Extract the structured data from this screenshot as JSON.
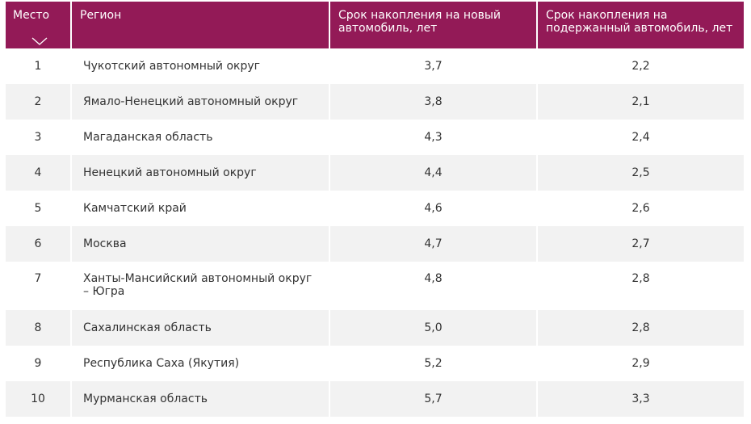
{
  "table": {
    "headers": {
      "place": "Место",
      "region": "Регион",
      "new_car": "Срок накопления на новый автомобиль, лет",
      "used_car": "Срок накопления на подержанный автомобиль, лет"
    },
    "sort_icon": "chevron-down-icon",
    "header_color": "#931a57",
    "rows": [
      {
        "place": "1",
        "region": "Чукотский автономный округ",
        "new_car": "3,7",
        "used_car": "2,2"
      },
      {
        "place": "2",
        "region": "Ямало-Ненецкий автономный округ",
        "new_car": "3,8",
        "used_car": "2,1"
      },
      {
        "place": "3",
        "region": "Магаданская область",
        "new_car": "4,3",
        "used_car": "2,4"
      },
      {
        "place": "4",
        "region": "Ненецкий автономный округ",
        "new_car": "4,4",
        "used_car": "2,5"
      },
      {
        "place": "5",
        "region": "Камчатский край",
        "new_car": "4,6",
        "used_car": "2,6"
      },
      {
        "place": "6",
        "region": "Москва",
        "new_car": "4,7",
        "used_car": "2,7"
      },
      {
        "place": "7",
        "region": "Ханты-Мансийский автономный округ – Югра",
        "new_car": "4,8",
        "used_car": "2,8"
      },
      {
        "place": "8",
        "region": "Сахалинская область",
        "new_car": "5,0",
        "used_car": "2,8"
      },
      {
        "place": "9",
        "region": "Республика Саха (Якутия)",
        "new_car": "5,2",
        "used_car": "2,9"
      },
      {
        "place": "10",
        "region": "Мурманская область",
        "new_car": "5,7",
        "used_car": "3,3"
      }
    ]
  }
}
